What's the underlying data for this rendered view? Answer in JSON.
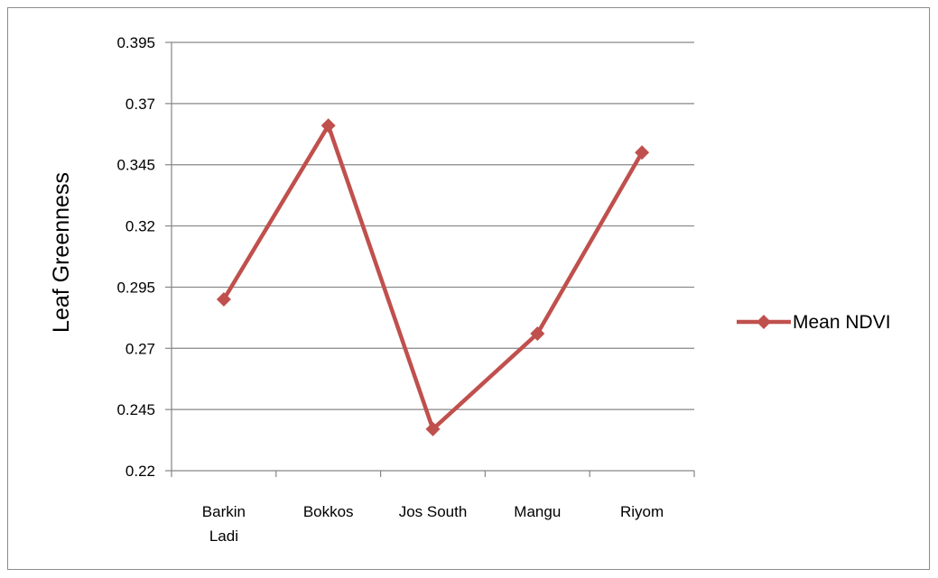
{
  "chart_data": {
    "type": "line",
    "categories": [
      "Barkin Ladi",
      "Bokkos",
      "Jos South",
      "Mangu",
      "Riyom"
    ],
    "category_lines": [
      [
        "Barkin",
        "Ladi"
      ],
      [
        "Bokkos"
      ],
      [
        "Jos South"
      ],
      [
        "Mangu"
      ],
      [
        "Riyom"
      ]
    ],
    "series": [
      {
        "name": "Mean NDVI",
        "values": [
          0.29,
          0.361,
          0.237,
          0.276,
          0.35
        ],
        "color": "#c0504d"
      }
    ],
    "ylabel": "Leaf Greenness",
    "ylim": [
      0.22,
      0.395
    ],
    "yticks": [
      0.22,
      0.245,
      0.27,
      0.295,
      0.32,
      0.345,
      0.37,
      0.395
    ],
    "ytick_labels": [
      "0.22",
      "0.245",
      "0.27",
      "0.295",
      "0.32",
      "0.345",
      "0.37",
      "0.395"
    ],
    "grid": true,
    "legend_position": "right",
    "gridline_color": "#868686"
  }
}
